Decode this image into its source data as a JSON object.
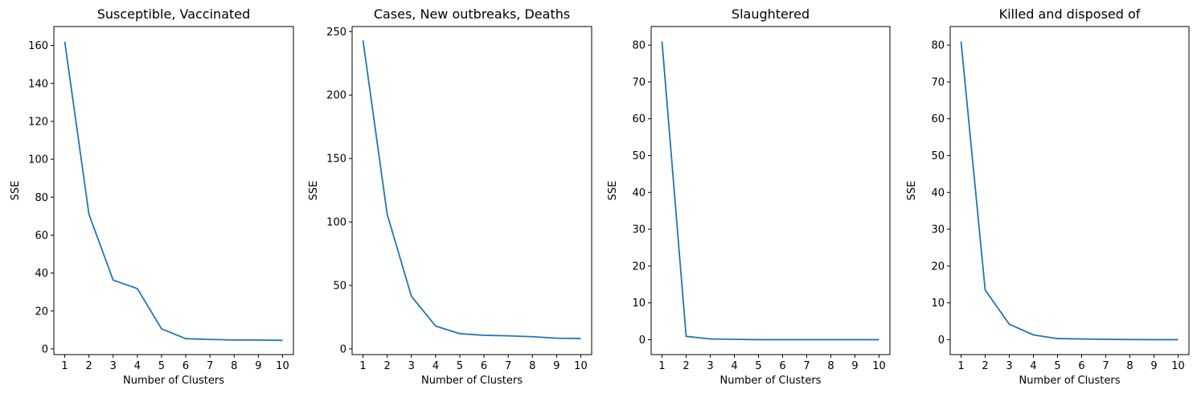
{
  "chart_data": [
    {
      "type": "line",
      "title": "Susceptible, Vaccinated",
      "xlabel": "Number of Clusters",
      "ylabel": "SSE",
      "x": [
        1,
        2,
        3,
        4,
        5,
        6,
        7,
        8,
        9,
        10
      ],
      "values": [
        162.0,
        71.0,
        36.3,
        31.8,
        10.6,
        5.4,
        5.0,
        4.7,
        4.7,
        4.5
      ],
      "xlim": [
        0.55,
        10.45
      ],
      "ylim": [
        -3.0,
        170.0
      ],
      "yticks": [
        0,
        20,
        40,
        60,
        80,
        100,
        120,
        140,
        160
      ],
      "xticks": [
        1,
        2,
        3,
        4,
        5,
        6,
        7,
        8,
        9,
        10
      ],
      "grid": false,
      "color": "#1f77b4"
    },
    {
      "type": "line",
      "title": "Cases, New outbreaks, Deaths",
      "xlabel": "Number of Clusters",
      "ylabel": "SSE",
      "x": [
        1,
        2,
        3,
        4,
        5,
        6,
        7,
        8,
        9,
        10
      ],
      "values": [
        243.0,
        106.0,
        41.5,
        18.0,
        12.0,
        10.7,
        10.3,
        9.6,
        8.4,
        8.2
      ],
      "xlim": [
        0.55,
        10.45
      ],
      "ylim": [
        -4.5,
        254.0
      ],
      "yticks": [
        0,
        50,
        100,
        150,
        200,
        250
      ],
      "xticks": [
        1,
        2,
        3,
        4,
        5,
        6,
        7,
        8,
        9,
        10
      ],
      "grid": false,
      "color": "#1f77b4"
    },
    {
      "type": "line",
      "title": "Slaughtered",
      "xlabel": "Number of Clusters",
      "ylabel": "SSE",
      "x": [
        1,
        2,
        3,
        4,
        5,
        6,
        7,
        8,
        9,
        10
      ],
      "values": [
        81.0,
        0.9,
        0.2,
        0.1,
        0.0,
        0.0,
        0.0,
        0.0,
        0.0,
        0.0
      ],
      "xlim": [
        0.55,
        10.45
      ],
      "ylim": [
        -4.05,
        85.05
      ],
      "yticks": [
        0,
        10,
        20,
        30,
        40,
        50,
        60,
        70,
        80
      ],
      "xticks": [
        1,
        2,
        3,
        4,
        5,
        6,
        7,
        8,
        9,
        10
      ],
      "grid": false,
      "color": "#1f77b4"
    },
    {
      "type": "line",
      "title": "Killed and disposed of",
      "xlabel": "Number of Clusters",
      "ylabel": "SSE",
      "x": [
        1,
        2,
        3,
        4,
        5,
        6,
        7,
        8,
        9,
        10
      ],
      "values": [
        81.0,
        13.5,
        4.2,
        1.3,
        0.3,
        0.2,
        0.1,
        0.05,
        0.0,
        0.0
      ],
      "xlim": [
        0.55,
        10.45
      ],
      "ylim": [
        -4.05,
        85.05
      ],
      "yticks": [
        0,
        10,
        20,
        30,
        40,
        50,
        60,
        70,
        80
      ],
      "xticks": [
        1,
        2,
        3,
        4,
        5,
        6,
        7,
        8,
        9,
        10
      ],
      "grid": false,
      "color": "#1f77b4"
    }
  ]
}
